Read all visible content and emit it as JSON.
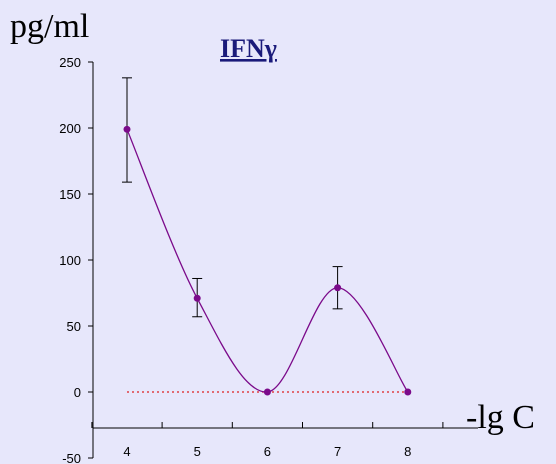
{
  "chart_data": {
    "type": "line",
    "title": "IFNγ",
    "ylabel": "pg/ml",
    "xlabel": "-lg C",
    "x": [
      4,
      5,
      6,
      7,
      8
    ],
    "series": [
      {
        "values": [
          199,
          71,
          0,
          79,
          0
        ],
        "error_low": [
          159,
          57,
          0,
          63,
          0
        ],
        "error_high": [
          238,
          86,
          0,
          95,
          0
        ],
        "color": "#7b0a8a"
      }
    ],
    "baseline": {
      "value": 0,
      "color": "#e02020",
      "style": "dotted"
    },
    "xticks": [
      "4",
      "5",
      "6",
      "7",
      "8"
    ],
    "yticks": [
      "-50",
      "0",
      "50",
      "100",
      "150",
      "200",
      "250"
    ],
    "ylim": [
      -50,
      250
    ],
    "xlim": [
      3.5,
      8.5
    ],
    "grid": false,
    "colors": {
      "background": "#e7e7fb",
      "title": "#1a1a7a",
      "line": "#7b0a8a",
      "axis": "#000000"
    }
  }
}
